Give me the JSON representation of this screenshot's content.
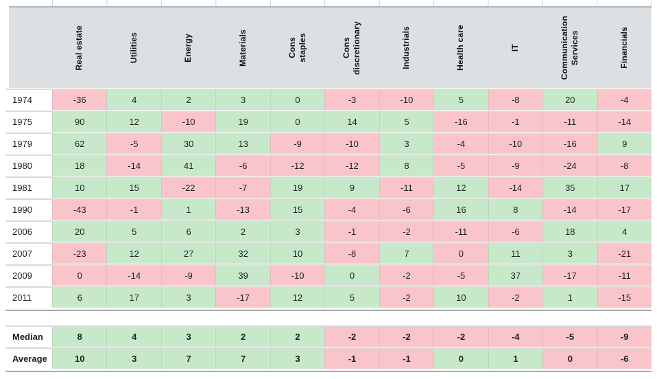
{
  "chart_data": {
    "type": "heatmap",
    "title": "",
    "columns": [
      "Real estate",
      "Utilities",
      "Energy",
      "Materials",
      "Cons staples",
      "Cons discretionary",
      "Industrials",
      "Health care",
      "IT",
      "Communication Services",
      "Financials"
    ],
    "columns_display": [
      "Real estate",
      "Utilities",
      "Energy",
      "Materials",
      "Cons\nstaples",
      "Cons\ndiscretionary",
      "Industrials",
      "Health care",
      "IT",
      "Communication\nServices",
      "Financials"
    ],
    "row_labels": [
      "1974",
      "1975",
      "1979",
      "1980",
      "1981",
      "1990",
      "2006",
      "2007",
      "2009",
      "2011"
    ],
    "values": [
      [
        -36,
        4,
        2,
        3,
        0,
        -3,
        -10,
        5,
        -8,
        20,
        -4
      ],
      [
        90,
        12,
        -10,
        19,
        0,
        14,
        5,
        -16,
        -1,
        -11,
        -14
      ],
      [
        62,
        -5,
        30,
        13,
        -9,
        -10,
        3,
        -4,
        -10,
        -16,
        9
      ],
      [
        18,
        -14,
        41,
        -6,
        -12,
        -12,
        8,
        -5,
        -9,
        -24,
        -8
      ],
      [
        10,
        15,
        -22,
        -7,
        19,
        9,
        -11,
        12,
        -14,
        35,
        17
      ],
      [
        -43,
        -1,
        1,
        -13,
        15,
        -4,
        -6,
        16,
        8,
        -14,
        -17
      ],
      [
        20,
        5,
        6,
        2,
        3,
        -1,
        -2,
        -11,
        -6,
        18,
        4
      ],
      [
        -23,
        12,
        27,
        32,
        10,
        -8,
        7,
        0,
        11,
        3,
        -21
      ],
      [
        0,
        -14,
        -9,
        39,
        -10,
        0,
        -2,
        -5,
        37,
        -17,
        -11
      ],
      [
        6,
        17,
        3,
        -17,
        12,
        5,
        -2,
        10,
        -2,
        1,
        -15
      ]
    ],
    "cell_colors": [
      [
        "neg",
        "pos",
        "pos",
        "pos",
        "pos",
        "neg",
        "neg",
        "pos",
        "neg",
        "pos",
        "neg"
      ],
      [
        "pos",
        "pos",
        "neg",
        "pos",
        "pos",
        "pos",
        "pos",
        "neg",
        "neg",
        "neg",
        "neg"
      ],
      [
        "pos",
        "neg",
        "pos",
        "pos",
        "neg",
        "neg",
        "pos",
        "neg",
        "neg",
        "neg",
        "pos"
      ],
      [
        "pos",
        "neg",
        "pos",
        "neg",
        "neg",
        "neg",
        "pos",
        "neg",
        "neg",
        "neg",
        "neg"
      ],
      [
        "pos",
        "pos",
        "neg",
        "neg",
        "pos",
        "pos",
        "neg",
        "pos",
        "neg",
        "pos",
        "pos"
      ],
      [
        "neg",
        "neg",
        "pos",
        "neg",
        "pos",
        "neg",
        "neg",
        "pos",
        "pos",
        "neg",
        "neg"
      ],
      [
        "pos",
        "pos",
        "pos",
        "pos",
        "pos",
        "neg",
        "neg",
        "neg",
        "neg",
        "pos",
        "pos"
      ],
      [
        "neg",
        "pos",
        "pos",
        "pos",
        "pos",
        "neg",
        "pos",
        "neg",
        "pos",
        "pos",
        "neg"
      ],
      [
        "neg",
        "neg",
        "neg",
        "pos",
        "neg",
        "pos",
        "neg",
        "neg",
        "pos",
        "neg",
        "neg"
      ],
      [
        "pos",
        "pos",
        "pos",
        "neg",
        "pos",
        "pos",
        "neg",
        "pos",
        "neg",
        "pos",
        "neg"
      ]
    ],
    "summary_rows": [
      {
        "label": "Median",
        "values": [
          8,
          4,
          3,
          2,
          2,
          -2,
          -2,
          -2,
          -4,
          -5,
          -9
        ],
        "colors": [
          "pos",
          "pos",
          "pos",
          "pos",
          "pos",
          "neg",
          "neg",
          "neg",
          "neg",
          "neg",
          "neg"
        ]
      },
      {
        "label": "Average",
        "values": [
          10,
          3,
          7,
          7,
          3,
          -1,
          -1,
          0,
          1,
          0,
          -6
        ],
        "colors": [
          "pos",
          "pos",
          "pos",
          "pos",
          "pos",
          "neg",
          "neg",
          "pos",
          "pos",
          "neg",
          "neg"
        ]
      }
    ],
    "legend": {
      "positive_bg": "#c8e9c9",
      "negative_bg": "#f9c5cb",
      "header_bg": "#dce0e2"
    },
    "layout": {
      "grid": "on",
      "value_format": "integer"
    }
  }
}
